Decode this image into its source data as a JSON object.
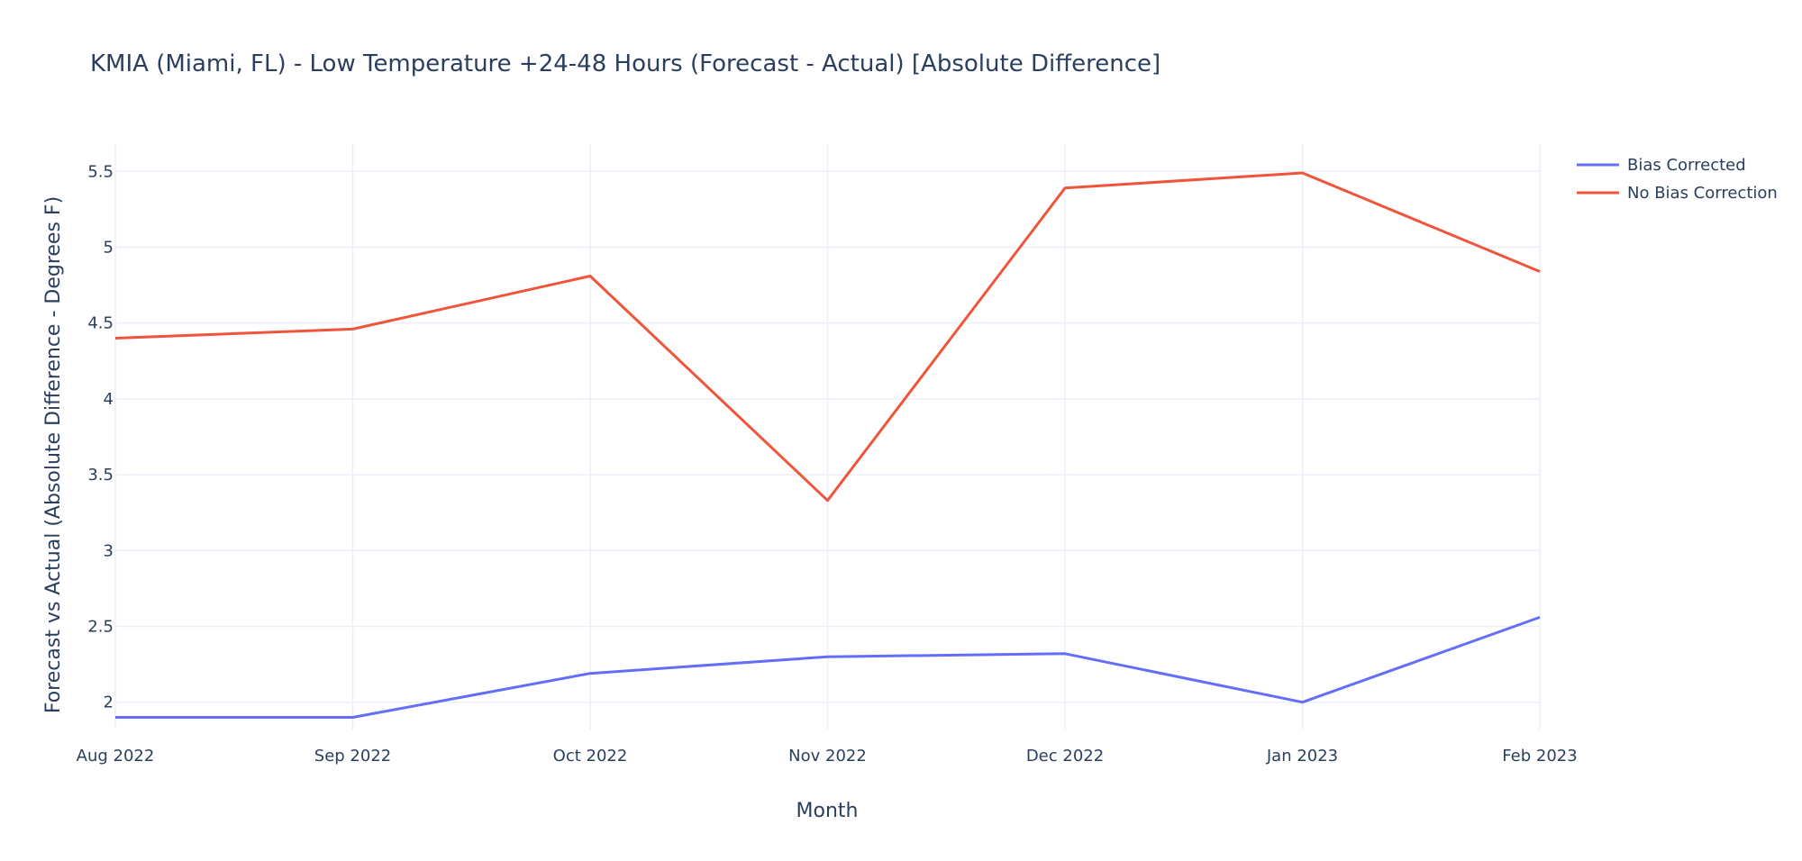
{
  "chart_data": {
    "type": "line",
    "title": "KMIA (Miami, FL) - Low Temperature +24-48 Hours (Forecast - Actual) [Absolute Difference]",
    "xlabel": "Month",
    "ylabel": "Forecast vs Actual (Absolute Difference - Degrees F)",
    "x": [
      "Aug 2022",
      "Sep 2022",
      "Oct 2022",
      "Nov 2022",
      "Dec 2022",
      "Jan 2023",
      "Feb 2023"
    ],
    "yticks": [
      "2",
      "2.5",
      "3",
      "3.5",
      "4",
      "4.5",
      "5",
      "5.5"
    ],
    "ylim": [
      1.82,
      5.68
    ],
    "grid": true,
    "legend_position": "top-right",
    "series": [
      {
        "name": "Bias Corrected",
        "color": "#636efa",
        "values": [
          1.9,
          1.9,
          2.19,
          2.3,
          2.32,
          2.0,
          2.56
        ]
      },
      {
        "name": "No Bias Correction",
        "color": "#ef553b",
        "values": [
          4.4,
          4.46,
          4.81,
          3.33,
          5.39,
          5.49,
          4.84
        ]
      }
    ]
  }
}
